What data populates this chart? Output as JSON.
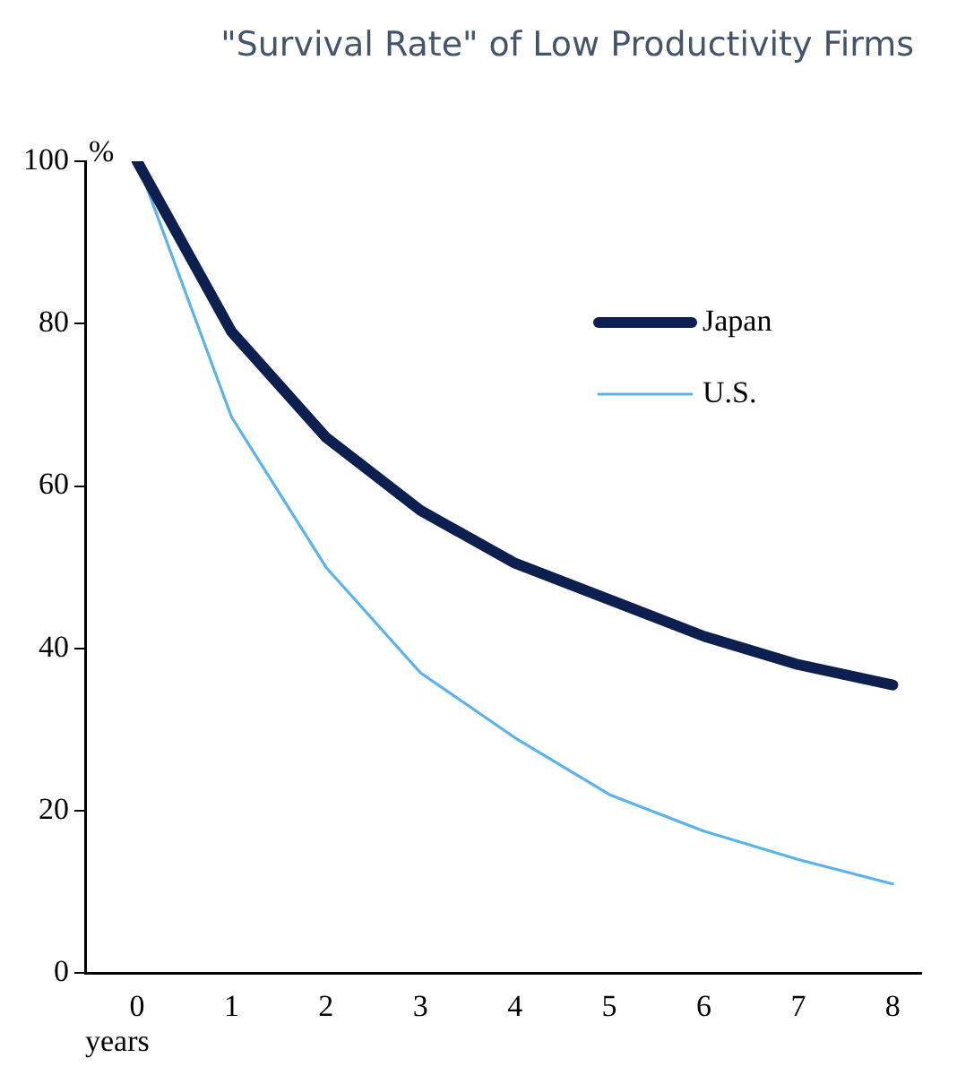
{
  "chart_data": {
    "type": "line",
    "title": "\"Survival Rate\" of Low Productivity Firms",
    "xlabel": "years",
    "ylabel": "%",
    "x": [
      0,
      1,
      2,
      3,
      4,
      5,
      6,
      7,
      8
    ],
    "series": [
      {
        "name": "Japan",
        "color": "#0d1f4f",
        "values": [
          100,
          79,
          66,
          57,
          50.5,
          46,
          41.5,
          38,
          35.5
        ]
      },
      {
        "name": "U.S.",
        "color": "#5ab4eb",
        "values": [
          100,
          68.5,
          50,
          37,
          29,
          22,
          17.5,
          14,
          11
        ]
      }
    ],
    "xlim": [
      -0.55,
      8.3
    ],
    "xticks": [
      0,
      1,
      2,
      3,
      4,
      5,
      6,
      7,
      8
    ],
    "ylim": [
      0,
      100
    ],
    "yticks": [
      0,
      20,
      40,
      60,
      80,
      100
    ],
    "grid": false,
    "legend": "top right",
    "marker": "none",
    "line_style": "solid"
  }
}
